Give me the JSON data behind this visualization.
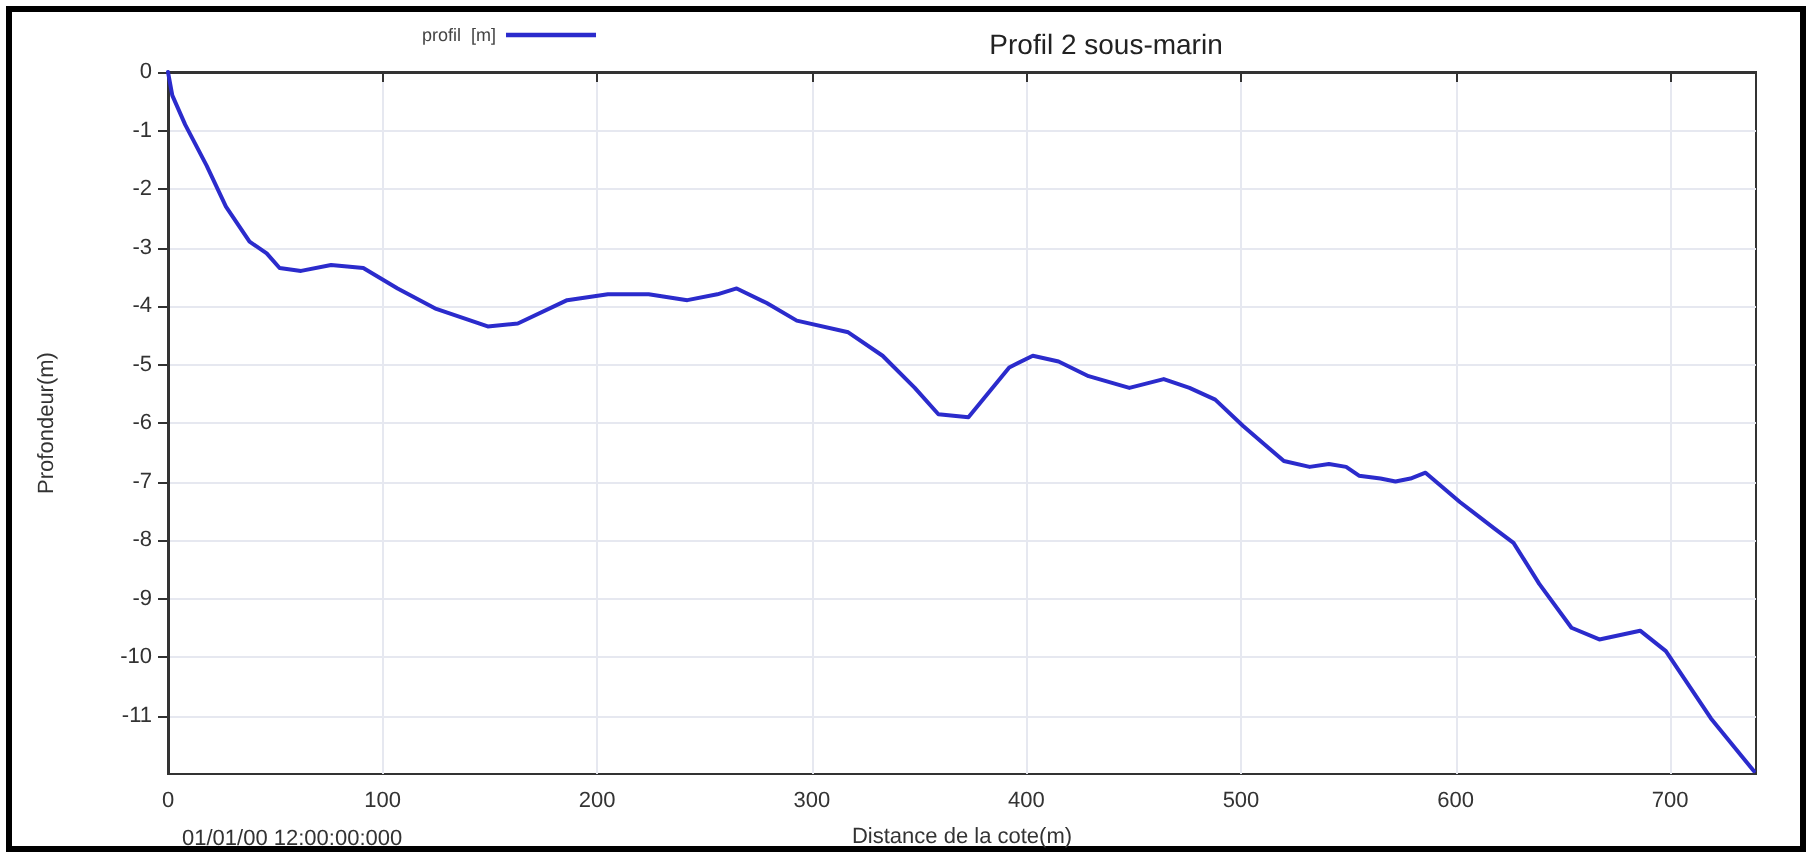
{
  "chart_data": {
    "type": "line",
    "title": "Profil 2 sous-marin",
    "xlabel": "Distance de la cote(m)",
    "ylabel": "Profondeur(m)",
    "annotations": [
      "01/01/00 12:00:00:000"
    ],
    "legend": "top left",
    "grid": true,
    "marker": "none",
    "line_style": "solid",
    "xlim": [
      0,
      740
    ],
    "xticks": [
      0,
      100,
      200,
      300,
      400,
      500,
      600,
      700
    ],
    "ylim": [
      -12,
      0
    ],
    "yticks": [
      0,
      -1,
      -2,
      -3,
      -4,
      -5,
      -6,
      -7,
      -8,
      -9,
      -10,
      -11
    ],
    "series": [
      {
        "name": "profil  [m]",
        "color": "#2b2bcc",
        "x": [
          0,
          2,
          8,
          18,
          27,
          38,
          46,
          52,
          62,
          76,
          91,
          107,
          125,
          149,
          163,
          186,
          205,
          224,
          242,
          256,
          265,
          279,
          293,
          317,
          333,
          348,
          359,
          373,
          392,
          403,
          415,
          429,
          448,
          464,
          476,
          488,
          501,
          520,
          532,
          541,
          549,
          555,
          565,
          572,
          579,
          586,
          602,
          618,
          627,
          639,
          654,
          667,
          686,
          698,
          719,
          739
        ],
        "values": [
          0,
          -0.4,
          -0.9,
          -1.6,
          -2.3,
          -2.9,
          -3.1,
          -3.35,
          -3.4,
          -3.3,
          -3.35,
          -3.7,
          -4.05,
          -4.35,
          -4.3,
          -3.9,
          -3.8,
          -3.8,
          -3.9,
          -3.8,
          -3.7,
          -3.95,
          -4.25,
          -4.45,
          -4.85,
          -5.4,
          -5.85,
          -5.9,
          -5.05,
          -4.85,
          -4.95,
          -5.2,
          -5.4,
          -5.25,
          -5.4,
          -5.6,
          -6.05,
          -6.65,
          -6.75,
          -6.7,
          -6.75,
          -6.9,
          -6.95,
          -7,
          -6.95,
          -6.85,
          -7.35,
          -7.8,
          -8.05,
          -8.75,
          -9.5,
          -9.7,
          -9.55,
          -9.9,
          -11.05,
          -11.95
        ]
      }
    ]
  }
}
